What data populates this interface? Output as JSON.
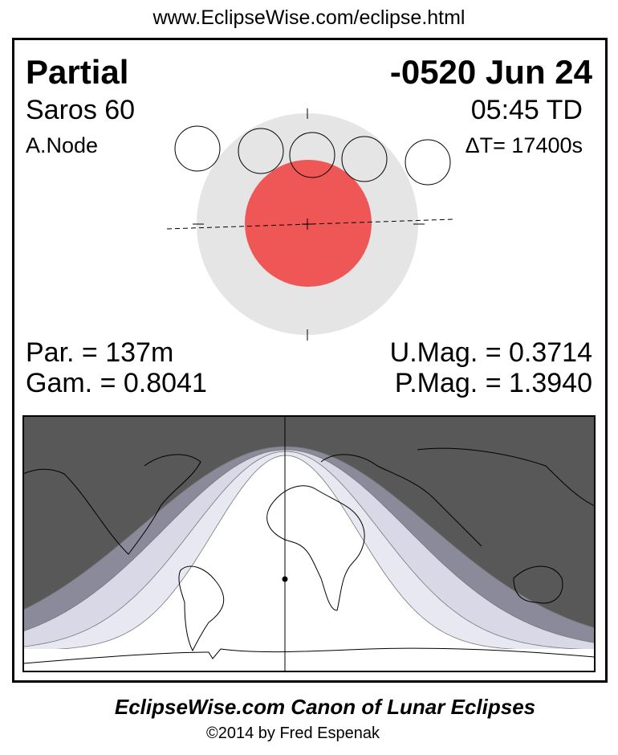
{
  "header": {
    "url": "www.EclipseWise.com/eclipse.html"
  },
  "eclipse": {
    "type": "Partial",
    "date": "-0520 Jun 24",
    "saros": "Saros  60",
    "time": "05:45 TD",
    "node": "A.Node",
    "delta_t": "ΔT=  17400s",
    "par": "Par. = 137m",
    "gam": "Gam. = 0.8041",
    "umag": "U.Mag. = 0.3714",
    "pmag": "P.Mag. = 1.3940"
  },
  "colors": {
    "umbra": "#ef5656",
    "penumbra": "#e5e5e5",
    "night": "#585858",
    "penumbral_band": "#8a8a9a",
    "partial_band": "#d8d8e6",
    "light_band": "#e8e8f2"
  },
  "footer": {
    "title": "EclipseWise.com Canon of Lunar Eclipses",
    "copyright": "©2014 by Fred Espenak"
  }
}
